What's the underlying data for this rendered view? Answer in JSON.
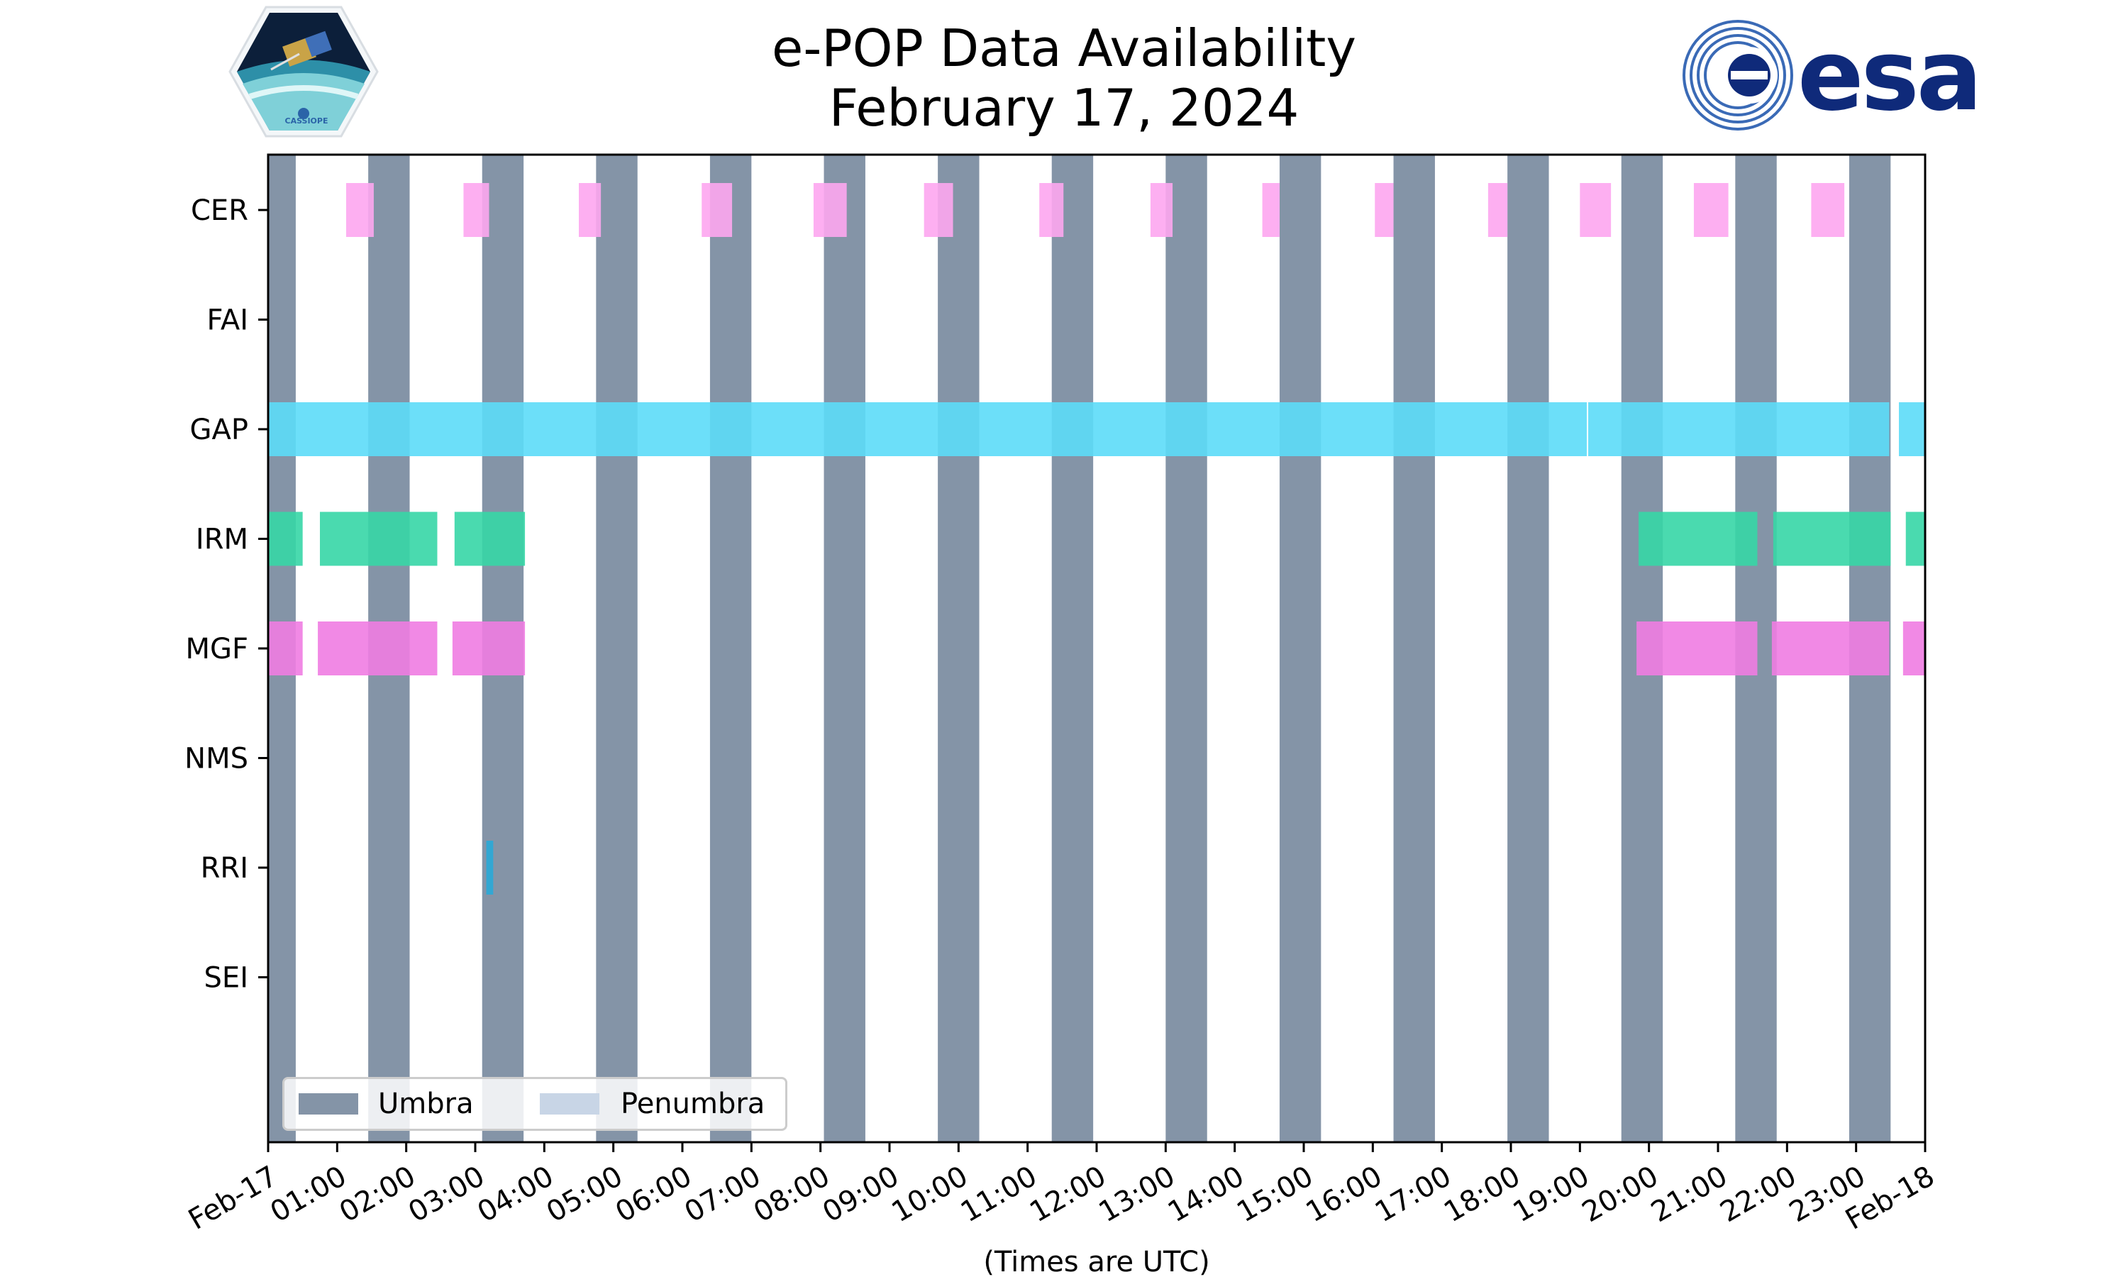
{
  "title": {
    "line1": "e-POP Data Availability",
    "line2": "February 17, 2024"
  },
  "logos": {
    "left_text": "CASSIOPE",
    "right_text": "esa"
  },
  "colors": {
    "umbra": "#8494a7",
    "penumbra": "#c8d5e6",
    "CER": "#fda6ef",
    "GAP": "#5cdcf8",
    "IRM": "#36d6a6",
    "MGF": "#f07ce2",
    "RRI": "#29a8d8"
  },
  "chart_data": {
    "type": "timeline",
    "title": "e-POP Data Availability\nFebruary 17, 2024",
    "xlabel": "(Times are UTC)",
    "x_range_hours": [
      0,
      24
    ],
    "x_ticks": [
      "Feb-17",
      "01:00",
      "02:00",
      "03:00",
      "04:00",
      "05:00",
      "06:00",
      "07:00",
      "08:00",
      "09:00",
      "10:00",
      "11:00",
      "12:00",
      "13:00",
      "14:00",
      "15:00",
      "16:00",
      "17:00",
      "18:00",
      "19:00",
      "20:00",
      "21:00",
      "22:00",
      "23:00",
      "Feb-18"
    ],
    "categories": [
      "CER",
      "FAI",
      "GAP",
      "IRM",
      "MGF",
      "NMS",
      "RRI",
      "SEI"
    ],
    "umbra_intervals_hours": [
      [
        0.0,
        0.4
      ],
      [
        1.45,
        2.05
      ],
      [
        3.1,
        3.7
      ],
      [
        4.75,
        5.35
      ],
      [
        6.4,
        7.0
      ],
      [
        8.05,
        8.65
      ],
      [
        9.7,
        10.3
      ],
      [
        11.35,
        11.95
      ],
      [
        13.0,
        13.6
      ],
      [
        14.65,
        15.25
      ],
      [
        16.3,
        16.9
      ],
      [
        17.95,
        18.55
      ],
      [
        19.6,
        20.2
      ],
      [
        21.25,
        21.85
      ],
      [
        22.9,
        23.5
      ]
    ],
    "penumbra_intervals_hours": [],
    "series": [
      {
        "name": "CER",
        "intervals_hours": [
          [
            1.13,
            1.53
          ],
          [
            2.83,
            3.2
          ],
          [
            4.5,
            4.82
          ],
          [
            6.28,
            6.72
          ],
          [
            7.9,
            8.38
          ],
          [
            9.5,
            9.92
          ],
          [
            11.17,
            11.52
          ],
          [
            12.78,
            13.1
          ],
          [
            14.4,
            14.65
          ],
          [
            16.03,
            16.3
          ],
          [
            17.67,
            17.95
          ],
          [
            19.0,
            19.45
          ],
          [
            20.65,
            21.15
          ],
          [
            22.35,
            22.83
          ]
        ]
      },
      {
        "name": "FAI",
        "intervals_hours": []
      },
      {
        "name": "GAP",
        "intervals_hours": [
          [
            0.0,
            19.1
          ],
          [
            19.12,
            23.48
          ],
          [
            23.62,
            24.0
          ]
        ]
      },
      {
        "name": "IRM",
        "intervals_hours": [
          [
            0.0,
            0.5
          ],
          [
            0.75,
            2.45
          ],
          [
            2.7,
            3.72
          ],
          [
            19.85,
            21.57
          ],
          [
            21.8,
            23.5
          ],
          [
            23.72,
            24.0
          ]
        ]
      },
      {
        "name": "MGF",
        "intervals_hours": [
          [
            0.0,
            0.5
          ],
          [
            0.72,
            2.45
          ],
          [
            2.67,
            3.72
          ],
          [
            19.82,
            21.57
          ],
          [
            21.78,
            23.48
          ],
          [
            23.68,
            24.0
          ]
        ]
      },
      {
        "name": "NMS",
        "intervals_hours": []
      },
      {
        "name": "RRI",
        "intervals_hours": [
          [
            3.16,
            3.26
          ]
        ]
      },
      {
        "name": "SEI",
        "intervals_hours": []
      }
    ],
    "legend": [
      "Umbra",
      "Penumbra"
    ],
    "legend_position": "lower-left"
  }
}
